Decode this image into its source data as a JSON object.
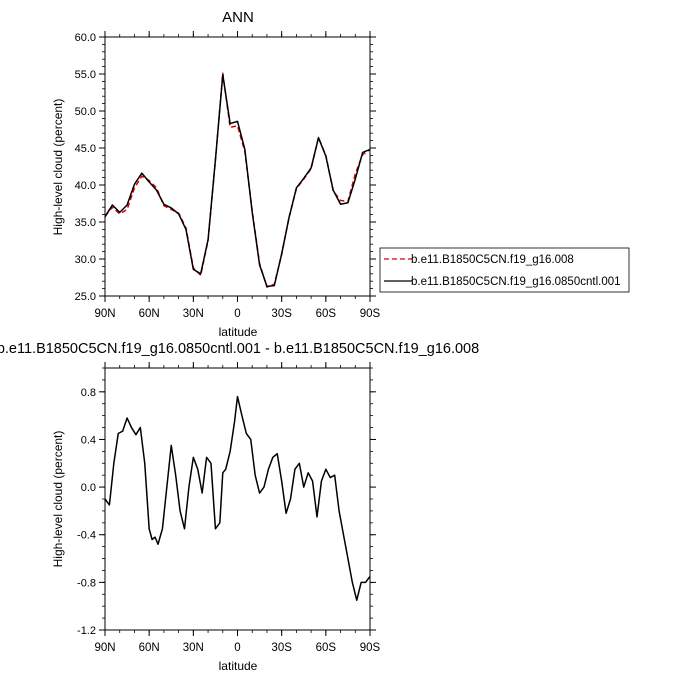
{
  "chart_data": [
    {
      "type": "line",
      "title": "ANN",
      "xlabel": "latitude",
      "ylabel": "High-level cloud (percent)",
      "xlim": [
        90,
        -90
      ],
      "ylim": [
        25,
        60
      ],
      "x_tick_values": [
        90,
        60,
        30,
        0,
        -30,
        -60,
        -90
      ],
      "x_tick_labels": [
        "90N",
        "60N",
        "30N",
        "0",
        "30S",
        "60S",
        "90S"
      ],
      "y_tick_values": [
        25,
        30,
        35,
        40,
        45,
        50,
        55,
        60
      ],
      "y_tick_labels": [
        "25.0",
        "30.0",
        "35.0",
        "40.0",
        "45.0",
        "50.0",
        "55.0",
        "60.0"
      ],
      "grid": false,
      "legend": {
        "placement": "right"
      },
      "series": [
        {
          "name": "b.e11.B1850C5CN.f19_g16.008",
          "color": "#e00000",
          "dash": "dashed",
          "x": [
            90,
            85,
            80,
            75,
            70,
            65,
            60,
            55,
            50,
            45,
            40,
            35,
            30,
            25,
            20,
            15,
            10,
            5,
            0,
            -5,
            -10,
            -15,
            -20,
            -25,
            -30,
            -35,
            -40,
            -45,
            -50,
            -55,
            -60,
            -65,
            -70,
            -75,
            -80,
            -85,
            -90
          ],
          "y": [
            35.8,
            37.0,
            36.1,
            36.7,
            39.6,
            41.2,
            40.6,
            39.6,
            37.2,
            36.7,
            36.2,
            34.2,
            28.8,
            27.8,
            32.5,
            43.3,
            55.1,
            47.8,
            48.0,
            44.5,
            36.5,
            29.4,
            26.2,
            26.6,
            30.6,
            35.6,
            39.5,
            40.8,
            42.2,
            46.4,
            44.0,
            39.2,
            37.9,
            37.8,
            41.5,
            44.1,
            44.8
          ]
        },
        {
          "name": "b.e11.B1850C5CN.f19_g16.0850cntl.001",
          "color": "#000000",
          "dash": "solid",
          "x": [
            90,
            85,
            80,
            75,
            70,
            65,
            60,
            55,
            50,
            45,
            40,
            35,
            30,
            25,
            20,
            15,
            10,
            5,
            0,
            -5,
            -10,
            -15,
            -20,
            -25,
            -30,
            -35,
            -40,
            -45,
            -50,
            -55,
            -60,
            -65,
            -70,
            -75,
            -80,
            -85,
            -90
          ],
          "y": [
            35.7,
            37.3,
            36.3,
            37.3,
            40.1,
            41.6,
            40.4,
            39.3,
            37.4,
            36.9,
            36.1,
            34.0,
            28.6,
            28.0,
            32.6,
            43.4,
            54.9,
            48.3,
            48.6,
            44.8,
            36.3,
            29.2,
            26.3,
            26.4,
            30.7,
            35.6,
            39.6,
            40.9,
            42.3,
            46.4,
            43.9,
            39.3,
            37.4,
            37.6,
            40.8,
            44.4,
            44.8
          ]
        }
      ]
    },
    {
      "type": "line",
      "title": "b.e11.B1850C5CN.f19_g16.0850cntl.001 - b.e11.B1850C5CN.f19_g16.008",
      "xlabel": "latitude",
      "ylabel": "High-level cloud (percent)",
      "xlim": [
        90,
        -90
      ],
      "ylim": [
        -1.2,
        1.0
      ],
      "x_tick_values": [
        90,
        60,
        30,
        0,
        -30,
        -60,
        -90
      ],
      "x_tick_labels": [
        "90N",
        "60N",
        "30N",
        "0",
        "30S",
        "60S",
        "90S"
      ],
      "y_tick_values": [
        -1.2,
        -0.8,
        -0.4,
        0.0,
        0.4,
        0.8
      ],
      "y_tick_labels": [
        "-1.2",
        "-0.8",
        "-0.4",
        "0.0",
        "0.4",
        "0.8"
      ],
      "grid": false,
      "series": [
        {
          "color": "#000000",
          "dash": "solid",
          "x": [
            90,
            87,
            84,
            81,
            78,
            75,
            72,
            69,
            66,
            63,
            60,
            58,
            56,
            54,
            51,
            48,
            45,
            42,
            39,
            36,
            33,
            30,
            27,
            24,
            21,
            18,
            15,
            12,
            10,
            8,
            5,
            2,
            0,
            -3,
            -6,
            -9,
            -12,
            -15,
            -18,
            -21,
            -24,
            -27,
            -30,
            -33,
            -36,
            -39,
            -42,
            -45,
            -48,
            -51,
            -54,
            -57,
            -60,
            -63,
            -66,
            -69,
            -72,
            -75,
            -78,
            -81,
            -84,
            -87,
            -90
          ],
          "y": [
            -0.1,
            -0.15,
            0.2,
            0.45,
            0.47,
            0.58,
            0.5,
            0.44,
            0.5,
            0.2,
            -0.35,
            -0.44,
            -0.42,
            -0.48,
            -0.35,
            0.0,
            0.35,
            0.1,
            -0.2,
            -0.35,
            0.0,
            0.25,
            0.15,
            -0.05,
            0.25,
            0.2,
            -0.35,
            -0.3,
            0.12,
            0.15,
            0.3,
            0.55,
            0.76,
            0.6,
            0.45,
            0.4,
            0.1,
            -0.05,
            0.0,
            0.15,
            0.25,
            0.28,
            0.05,
            -0.22,
            -0.1,
            0.15,
            0.2,
            0.0,
            0.12,
            0.05,
            -0.25,
            0.05,
            0.15,
            0.08,
            0.1,
            -0.2,
            -0.4,
            -0.6,
            -0.8,
            -0.95,
            -0.8,
            -0.8,
            -0.75
          ]
        }
      ]
    }
  ]
}
